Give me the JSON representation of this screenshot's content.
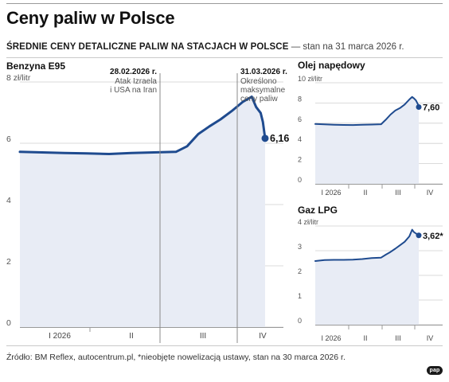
{
  "header": {
    "title": "Ceny paliw w Polsce",
    "subtitle_bold": "ŚREDNIE CENY DETALICZNE PALIW NA STACJACH W POLSCE",
    "subtitle_note": " — stan na 31 marca 2026 r."
  },
  "footer": {
    "source": "Źródło: BM Reflex, autocentrum.pl, *nieobjęte nowelizacją ustawy, stan na 30 marca 2026 r.",
    "logo": "pap"
  },
  "colors": {
    "line": "#1f4b8f",
    "fill": "#e8ecf5",
    "grid": "#cfcfcf"
  },
  "chart_data": [
    {
      "type": "area",
      "title": "Benzyna E95",
      "unit_label": "8 zł/litr",
      "ylim": [
        0,
        8
      ],
      "yticks": [
        "8 zł/litr",
        "6",
        "4",
        "2",
        "0"
      ],
      "xlim": [
        0,
        13
      ],
      "x_period_labels": [
        "I 2026",
        "II",
        "III",
        "IV"
      ],
      "x": [
        0,
        1,
        2,
        3,
        4,
        5,
        6,
        7,
        7.5,
        8,
        8.5,
        9,
        9.5,
        10,
        10.4,
        10.6,
        10.8,
        10.9,
        11.0
      ],
      "values": [
        5.72,
        5.7,
        5.68,
        5.67,
        5.65,
        5.68,
        5.7,
        5.72,
        5.9,
        6.3,
        6.55,
        6.78,
        7.05,
        7.35,
        7.52,
        7.18,
        6.99,
        6.7,
        6.16
      ],
      "end_label": "6,16",
      "annotations": [
        {
          "date": "28.02.2026 r.",
          "text": [
            "Atak Izraela",
            "i USA na Iran"
          ],
          "x": 7
        },
        {
          "date": "31.03.2026 r.",
          "text": [
            "Określono",
            "maksymalne",
            "ceny paliw"
          ],
          "x": 11
        }
      ]
    },
    {
      "type": "area",
      "title": "Olej napędowy",
      "unit_label": "10 zł/litr",
      "ylim": [
        0,
        10
      ],
      "yticks": [
        "10 zł/litr",
        "8",
        "6",
        "4",
        "2",
        "0"
      ],
      "xlim": [
        0,
        13
      ],
      "x_period_labels": [
        "I 2026",
        "II",
        "III",
        "IV"
      ],
      "x": [
        0,
        1,
        2,
        3,
        4,
        5,
        6,
        7,
        7.5,
        8,
        8.5,
        9,
        9.5,
        10,
        10.3,
        10.5,
        10.7,
        10.9,
        11.0
      ],
      "values": [
        5.92,
        5.88,
        5.85,
        5.83,
        5.82,
        5.85,
        5.87,
        5.9,
        6.35,
        6.85,
        7.25,
        7.5,
        7.85,
        8.35,
        8.6,
        8.45,
        8.25,
        7.9,
        7.6
      ],
      "end_label": "7,60"
    },
    {
      "type": "area",
      "title": "Gaz LPG",
      "unit_label": "4 zł/litr",
      "ylim": [
        0,
        4
      ],
      "yticks": [
        "4 zł/litr",
        "3",
        "2",
        "1",
        "0"
      ],
      "xlim": [
        0,
        13
      ],
      "x_period_labels": [
        "I 2026",
        "II",
        "III",
        "IV"
      ],
      "x": [
        0,
        1,
        2,
        3,
        4,
        5,
        6,
        7,
        7.5,
        8,
        8.5,
        9,
        9.5,
        10,
        10.3,
        10.5,
        10.7,
        10.9,
        11.0
      ],
      "values": [
        2.58,
        2.62,
        2.63,
        2.63,
        2.64,
        2.66,
        2.7,
        2.72,
        2.84,
        2.95,
        3.08,
        3.22,
        3.36,
        3.58,
        3.85,
        3.75,
        3.7,
        3.65,
        3.62
      ],
      "end_label": "3,62*"
    }
  ]
}
